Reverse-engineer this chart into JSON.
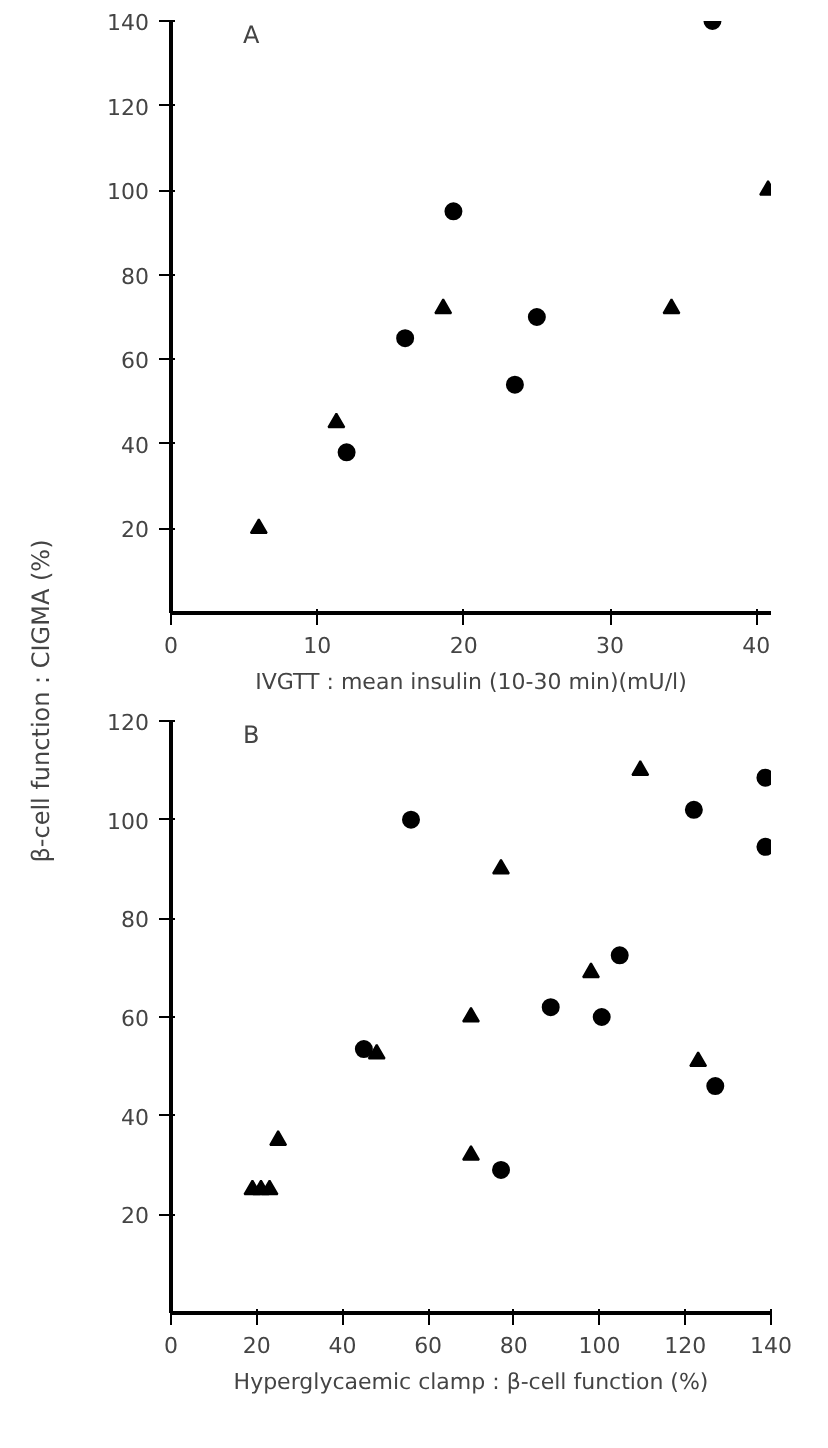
{
  "chart_data": [
    {
      "type": "scatter",
      "title": "A",
      "xlabel": "IVGTT : mean insulin (10-30 min)(mU/l)",
      "ylabel": "β-cell function : CIGMA (%)",
      "xlim": [
        0,
        41
      ],
      "ylim": [
        0,
        140
      ],
      "xticks": [
        0,
        10,
        20,
        30,
        40
      ],
      "yticks": [
        20,
        40,
        60,
        80,
        100,
        120,
        140
      ],
      "series": [
        {
          "color": "#000000",
          "marker": "circle",
          "x": [
            12,
            16,
            19.3,
            23.5,
            25,
            37
          ],
          "values": [
            38,
            65,
            95,
            54,
            70,
            140
          ]
        },
        {
          "color": "#000000",
          "marker": "triangle",
          "x": [
            6,
            11.3,
            18.6,
            34.2,
            40.8
          ],
          "values": [
            20,
            45,
            72,
            72,
            100
          ]
        }
      ]
    },
    {
      "type": "scatter",
      "title": "B",
      "xlabel": "Hyperglycaemic clamp : β-cell function (%)",
      "xlim": [
        0,
        140
      ],
      "ylim": [
        0,
        120
      ],
      "xticks": [
        0,
        20,
        40,
        60,
        80,
        100,
        120,
        140
      ],
      "yticks": [
        20,
        40,
        60,
        80,
        100,
        120
      ],
      "series": [
        {
          "color": "#000000",
          "marker": "circle",
          "x": [
            45,
            56,
            77,
            88.6,
            100.5,
            104.7,
            122,
            127,
            138.7,
            138.7
          ],
          "values": [
            53.5,
            100,
            29,
            62,
            60,
            72.5,
            102,
            46,
            108.5,
            94.5
          ]
        },
        {
          "color": "#000000",
          "marker": "triangle",
          "x": [
            19,
            21,
            23,
            25,
            48,
            70,
            70,
            77,
            98,
            109.5,
            123
          ],
          "values": [
            25,
            25,
            25,
            35,
            52.5,
            60,
            32,
            90,
            69,
            110,
            51
          ]
        }
      ]
    }
  ]
}
